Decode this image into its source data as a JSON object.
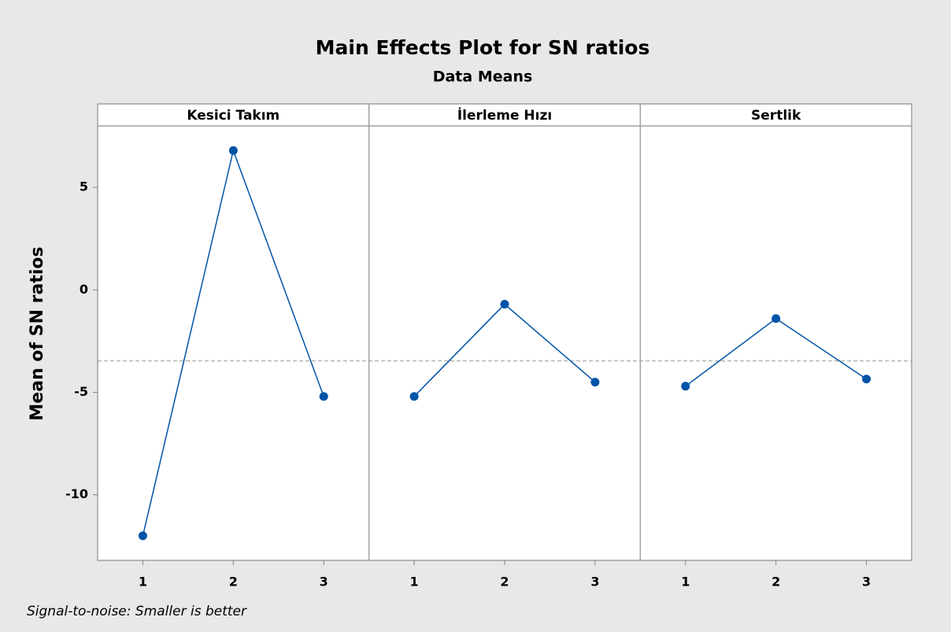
{
  "chart_data": {
    "type": "line",
    "title": "Main Effects Plot for SN ratios",
    "subtitle": "Data Means",
    "y_label": "Mean of SN ratios",
    "footnote": "Signal-to-noise: Smaller is better",
    "color": "#0054a6",
    "reference_line": -3.47,
    "ylim": [
      -13.2,
      8.0
    ],
    "yticks": [
      -10,
      -5,
      0,
      5
    ],
    "panels": [
      {
        "name": "Kesici Takım",
        "categories": [
          "1",
          "2",
          "3"
        ],
        "values": [
          -12.0,
          6.8,
          -5.2
        ]
      },
      {
        "name": "İlerleme Hızı",
        "categories": [
          "1",
          "2",
          "3"
        ],
        "values": [
          -5.2,
          -0.7,
          -4.5
        ]
      },
      {
        "name": "Sertlik",
        "categories": [
          "1",
          "2",
          "3"
        ],
        "values": [
          -4.7,
          -1.4,
          -4.35
        ]
      }
    ]
  }
}
